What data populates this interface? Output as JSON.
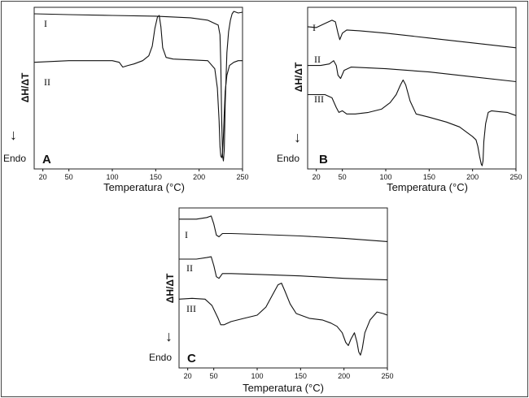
{
  "figure": {
    "y_label": "ΔH/ΔT",
    "endo_label": "Endo"
  },
  "chart_data": [
    {
      "type": "line",
      "panel": "A",
      "xlabel": "Temperatura (°C)",
      "ylabel": "ΔH/ΔT",
      "xlim": [
        10,
        250
      ],
      "x_ticks": [
        20,
        50,
        100,
        150,
        200,
        250
      ],
      "series": [
        {
          "name": "I",
          "x": [
            10,
            50,
            100,
            150,
            190,
            210,
            222,
            224,
            225,
            226,
            227,
            228,
            229,
            230,
            232,
            234,
            236,
            238,
            240,
            245,
            250
          ],
          "y": [
            96,
            95.5,
            95,
            94.5,
            93.5,
            92,
            89,
            83,
            65,
            30,
            8,
            5,
            12,
            40,
            72,
            85,
            92,
            96,
            97.5,
            96.5,
            97
          ]
        },
        {
          "name": "II",
          "x": [
            10,
            50,
            100,
            108,
            112,
            118,
            125,
            135,
            142,
            146,
            149,
            152,
            154,
            156,
            158,
            162,
            170,
            190,
            210,
            218,
            221,
            223,
            224,
            225,
            226,
            227,
            228,
            229,
            230,
            232,
            235,
            240,
            245,
            250
          ],
          "y": [
            66,
            67,
            67,
            66,
            63,
            64,
            65,
            67,
            70,
            76,
            87,
            94,
            95,
            88,
            75,
            69,
            68,
            67.5,
            67,
            62,
            50,
            30,
            14,
            8,
            7,
            10,
            20,
            35,
            48,
            58,
            64,
            66,
            67,
            67
          ]
        }
      ]
    },
    {
      "type": "line",
      "panel": "B",
      "xlabel": "Temperatura (°C)",
      "ylabel": "ΔH/ΔT",
      "xlim": [
        10,
        250
      ],
      "x_ticks": [
        20,
        50,
        100,
        150,
        200,
        250
      ],
      "series": [
        {
          "name": "I",
          "x": [
            10,
            20,
            30,
            38,
            42,
            45,
            47,
            50,
            55,
            70,
            100,
            150,
            200,
            250
          ],
          "y": [
            88,
            87.5,
            90,
            92,
            91,
            84,
            80,
            84,
            86,
            85.5,
            84,
            81,
            78,
            75
          ]
        },
        {
          "name": "II",
          "x": [
            10,
            25,
            35,
            40,
            43,
            45,
            48,
            52,
            60,
            100,
            150,
            200,
            250
          ],
          "y": [
            64,
            64,
            65,
            67,
            64,
            58,
            56,
            61,
            63,
            62,
            60,
            57,
            54
          ]
        },
        {
          "name": "III",
          "x": [
            10,
            30,
            38,
            43,
            46,
            50,
            55,
            65,
            80,
            95,
            105,
            112,
            117,
            120,
            123,
            128,
            135,
            150,
            170,
            185,
            195,
            200,
            204,
            206,
            208,
            210,
            211,
            212,
            213,
            215,
            218,
            222,
            230,
            240,
            250
          ],
          "y": [
            46,
            46,
            44,
            38,
            35,
            36,
            34,
            34,
            35,
            37,
            41,
            46,
            52,
            55,
            52,
            42,
            34,
            32,
            29,
            26,
            22,
            20,
            18,
            14,
            8,
            3,
            2,
            5,
            17,
            28,
            35,
            36,
            35.5,
            35,
            33
          ]
        }
      ]
    },
    {
      "type": "line",
      "panel": "C",
      "xlabel": "Temperatura (°C)",
      "ylabel": "ΔH/ΔT",
      "xlim": [
        10,
        250
      ],
      "x_ticks": [
        20,
        50,
        100,
        150,
        200,
        250
      ],
      "series": [
        {
          "name": "I",
          "x": [
            10,
            30,
            42,
            47,
            50,
            53,
            56,
            60,
            70,
            100,
            150,
            200,
            250
          ],
          "y": [
            93,
            93,
            94,
            95,
            90,
            83,
            82,
            84,
            84,
            83.5,
            82.5,
            81,
            79
          ]
        },
        {
          "name": "II",
          "x": [
            10,
            30,
            42,
            47,
            50,
            53,
            56,
            60,
            70,
            100,
            150,
            200,
            250
          ],
          "y": [
            68,
            68,
            69,
            69.5,
            64,
            57,
            56,
            59,
            59,
            58.5,
            57.5,
            56,
            55
          ]
        },
        {
          "name": "III",
          "x": [
            10,
            25,
            40,
            48,
            55,
            58,
            62,
            70,
            85,
            100,
            110,
            118,
            124,
            128,
            132,
            138,
            145,
            160,
            175,
            185,
            192,
            198,
            202,
            205,
            208,
            212,
            215,
            217,
            219,
            221,
            224,
            230,
            238,
            245,
            250
          ],
          "y": [
            43,
            43.5,
            43,
            39,
            31,
            27,
            27,
            29,
            31,
            33,
            38,
            46,
            52,
            53,
            48,
            40,
            34,
            31,
            30,
            28,
            26,
            22,
            16,
            14,
            18,
            22,
            16,
            10,
            8,
            12,
            22,
            30,
            35,
            34,
            33
          ]
        }
      ]
    }
  ]
}
